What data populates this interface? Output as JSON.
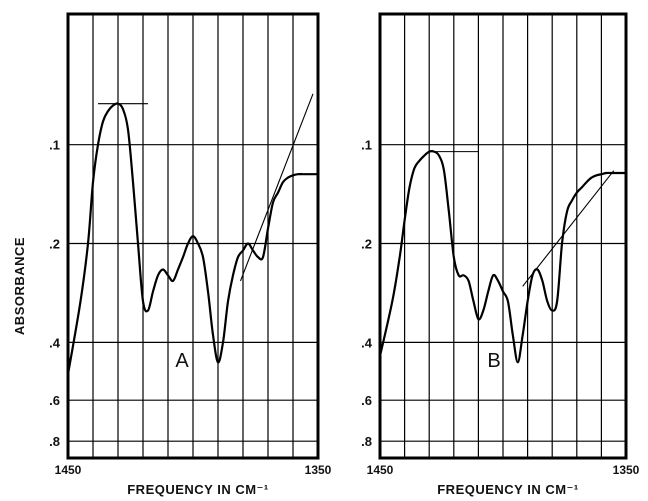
{
  "chart_data": [
    {
      "type": "line",
      "panel_label": "A",
      "xlim": [
        1450,
        1350
      ],
      "x_tick_labels": [
        "1450",
        "1350"
      ],
      "ylim": [
        0.04,
        0.9
      ],
      "y_scale": "log",
      "y_ticks": [
        0.1,
        0.2,
        0.4,
        0.6,
        0.8
      ],
      "y_tick_labels": [
        ".1",
        ".2",
        ".4",
        ".6",
        ".8"
      ],
      "grid": true,
      "x": [
        1450,
        1445,
        1442,
        1440,
        1438,
        1436,
        1434,
        1432,
        1430,
        1428,
        1426,
        1424,
        1422,
        1420,
        1418,
        1416,
        1414,
        1412,
        1410,
        1408,
        1406,
        1404,
        1402,
        1400,
        1398,
        1396,
        1394,
        1392,
        1390,
        1388,
        1386,
        1384,
        1382,
        1380,
        1378,
        1376,
        1374,
        1372,
        1370,
        1368,
        1366,
        1364,
        1362,
        1360,
        1358,
        1356,
        1354,
        1352,
        1350
      ],
      "y": [
        0.5,
        0.3,
        0.2,
        0.13,
        0.1,
        0.085,
        0.079,
        0.076,
        0.075,
        0.078,
        0.09,
        0.13,
        0.2,
        0.3,
        0.32,
        0.28,
        0.25,
        0.24,
        0.25,
        0.26,
        0.24,
        0.22,
        0.2,
        0.19,
        0.2,
        0.22,
        0.28,
        0.38,
        0.46,
        0.4,
        0.3,
        0.25,
        0.22,
        0.21,
        0.2,
        0.21,
        0.22,
        0.22,
        0.18,
        0.15,
        0.14,
        0.13,
        0.126,
        0.124,
        0.123,
        0.123,
        0.123,
        0.123,
        0.123
      ],
      "reference_lines": [
        {
          "x": [
            1438,
            1418
          ],
          "y": [
            0.075,
            0.075
          ]
        },
        {
          "x": [
            1381,
            1352
          ],
          "y": [
            0.26,
            0.07
          ]
        }
      ]
    },
    {
      "type": "line",
      "panel_label": "B",
      "xlim": [
        1450,
        1350
      ],
      "x_tick_labels": [
        "1450",
        "1350"
      ],
      "ylim": [
        0.04,
        0.9
      ],
      "y_scale": "log",
      "y_ticks": [
        0.1,
        0.2,
        0.4,
        0.6,
        0.8
      ],
      "y_tick_labels": [
        ".1",
        ".2",
        ".4",
        ".6",
        ".8"
      ],
      "grid": true,
      "x": [
        1450,
        1445,
        1442,
        1440,
        1438,
        1436,
        1434,
        1432,
        1430,
        1428,
        1426,
        1424,
        1422,
        1420,
        1418,
        1416,
        1414,
        1412,
        1410,
        1408,
        1406,
        1404,
        1402,
        1400,
        1398,
        1396,
        1394,
        1392,
        1390,
        1388,
        1386,
        1384,
        1382,
        1380,
        1378,
        1376,
        1374,
        1372,
        1370,
        1368,
        1366,
        1364,
        1362,
        1360,
        1358,
        1356,
        1354,
        1352,
        1350
      ],
      "y": [
        0.44,
        0.3,
        0.22,
        0.17,
        0.135,
        0.118,
        0.112,
        0.108,
        0.105,
        0.105,
        0.108,
        0.12,
        0.16,
        0.22,
        0.25,
        0.25,
        0.26,
        0.3,
        0.34,
        0.32,
        0.28,
        0.25,
        0.26,
        0.28,
        0.3,
        0.38,
        0.46,
        0.38,
        0.3,
        0.25,
        0.24,
        0.26,
        0.3,
        0.32,
        0.3,
        0.2,
        0.16,
        0.148,
        0.14,
        0.135,
        0.13,
        0.126,
        0.124,
        0.123,
        0.122,
        0.122,
        0.122,
        0.122,
        0.122
      ],
      "reference_lines": [
        {
          "x": [
            1430,
            1410
          ],
          "y": [
            0.105,
            0.105
          ]
        },
        {
          "x": [
            1392,
            1355
          ],
          "y": [
            0.27,
            0.12
          ]
        }
      ]
    }
  ],
  "axis_labels": {
    "y": "ABSORBANCE",
    "x": "FREQUENCY IN CM⁻¹"
  }
}
